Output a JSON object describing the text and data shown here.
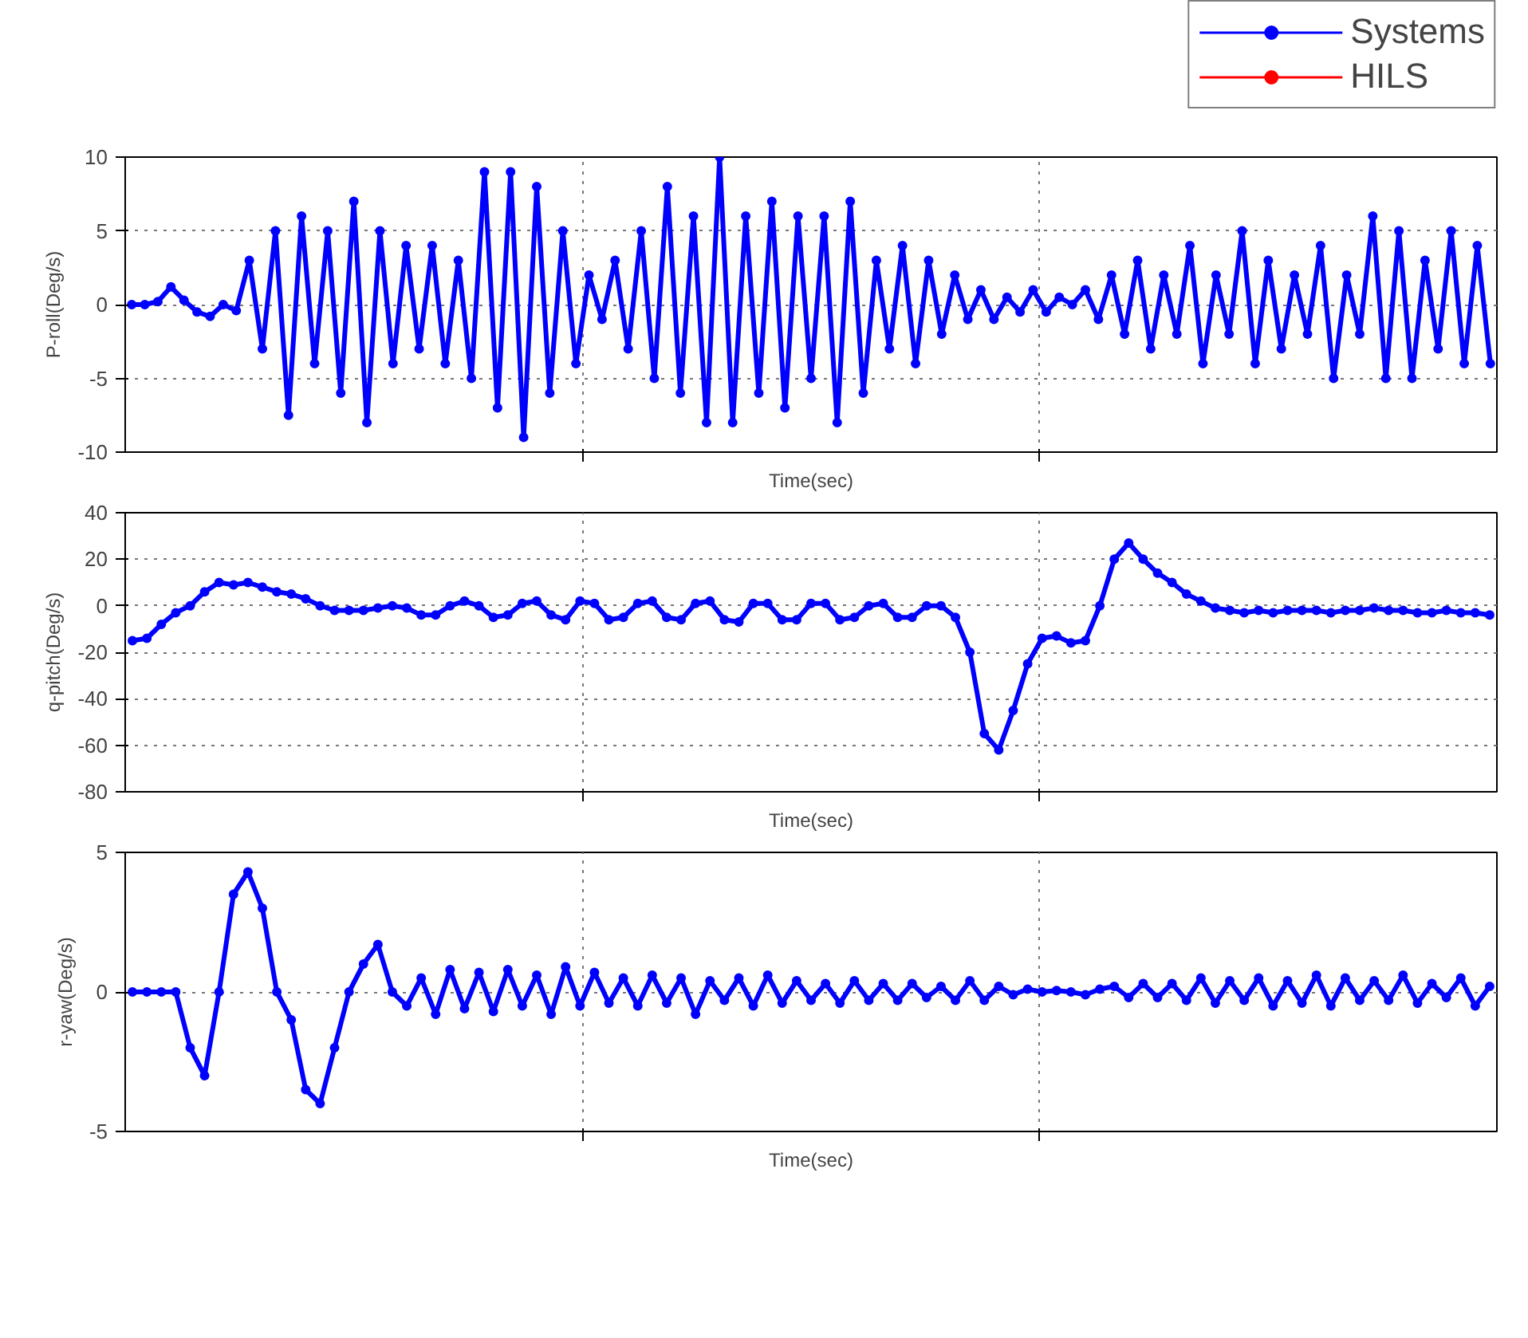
{
  "chart_data": [
    {
      "type": "line",
      "xlabel": "Time(sec)",
      "ylabel": "P-roll(Deg/s)",
      "ylim": [
        -10,
        10
      ],
      "yticks": [
        -10,
        -5,
        0,
        5,
        10
      ],
      "grid": true,
      "legend": "top right",
      "marker": "circle",
      "line_style": "solid",
      "tick_labels": "y",
      "categories": [
        null,
        null,
        null,
        null,
        null,
        null,
        null,
        null,
        null,
        null,
        null,
        null,
        null,
        null,
        null,
        null,
        null,
        null,
        null,
        null,
        null,
        null,
        null,
        null,
        null,
        null,
        null,
        null,
        null,
        null,
        null,
        null,
        null,
        null,
        null,
        null,
        null,
        null,
        null,
        null,
        null,
        null,
        null,
        null,
        null,
        null,
        null,
        null,
        null,
        null,
        null,
        null,
        null,
        null,
        null,
        null,
        null,
        null,
        null,
        null,
        null,
        null,
        null,
        null,
        null,
        null,
        null,
        null,
        null,
        null,
        null,
        null,
        null,
        null,
        null,
        null,
        null,
        null,
        null,
        null,
        null,
        null,
        null,
        null,
        null,
        null,
        null,
        null,
        null,
        null,
        null,
        null,
        null,
        null,
        null,
        null,
        null,
        null,
        null,
        null,
        null,
        null,
        null,
        null,
        null
      ],
      "series": [
        {
          "name": "Systems",
          "color": "#0000ff",
          "values": [
            0,
            0,
            0.2,
            1.2,
            0.3,
            -0.5,
            -0.8,
            0,
            -0.4,
            3,
            -3,
            5,
            -7.5,
            6,
            -4,
            5,
            -6,
            7,
            -8,
            5,
            -4,
            4,
            -3,
            4,
            -4,
            3,
            -5,
            9,
            -7,
            9,
            -9,
            8,
            -6,
            5,
            -4,
            2,
            -1,
            3,
            -3,
            5,
            -5,
            8,
            -6,
            6,
            -8,
            10,
            -8,
            6,
            -6,
            7,
            -7,
            6,
            -5,
            6,
            -8,
            7,
            -6,
            3,
            -3,
            4,
            -4,
            3,
            -2,
            2,
            -1,
            1,
            -1,
            0.5,
            -0.5,
            1,
            -0.5,
            0.5,
            0,
            1,
            -1,
            2,
            -2,
            3,
            -3,
            2,
            -2,
            4,
            -4,
            2,
            -2,
            5,
            -4,
            3,
            -3,
            2,
            -2,
            4,
            -5,
            2,
            -2,
            6,
            -5,
            5,
            -5,
            3,
            -3,
            5,
            -4,
            4,
            -4
          ]
        },
        {
          "name": "HILS",
          "color": "#ff0000",
          "values": [
            null,
            null,
            null,
            null,
            null,
            null,
            null,
            null,
            null,
            null,
            null,
            null,
            null,
            null,
            null,
            null,
            null,
            null,
            null,
            null,
            null,
            null,
            null,
            null,
            null,
            null,
            null,
            null,
            null,
            null,
            null,
            null,
            null,
            null,
            null,
            null,
            null,
            null,
            null,
            null,
            null,
            null,
            null,
            null,
            null,
            null,
            null,
            null,
            null,
            null,
            null,
            null,
            null,
            null,
            null,
            null,
            null,
            null,
            null,
            null,
            null,
            null,
            null,
            null,
            null,
            null,
            null,
            null,
            null,
            null,
            null,
            null,
            null,
            null,
            null,
            null,
            null,
            null,
            null,
            null,
            null,
            null,
            null,
            null,
            null,
            null,
            null,
            null,
            null,
            null,
            null,
            null,
            null,
            null,
            null,
            null,
            null,
            null,
            null,
            null,
            null,
            null,
            null,
            null,
            null
          ]
        }
      ]
    },
    {
      "type": "line",
      "xlabel": "Time(sec)",
      "ylabel": "q-pitch(Deg/s)",
      "ylim": [
        -80,
        40
      ],
      "yticks": [
        -80,
        -60,
        -40,
        -20,
        0,
        20,
        40
      ],
      "grid": true,
      "marker": "circle",
      "line_style": "solid",
      "tick_labels": "y",
      "categories": [
        null,
        null,
        null,
        null,
        null,
        null,
        null,
        null,
        null,
        null,
        null,
        null,
        null,
        null,
        null,
        null,
        null,
        null,
        null,
        null,
        null,
        null,
        null,
        null,
        null,
        null,
        null,
        null,
        null,
        null,
        null,
        null,
        null,
        null,
        null,
        null,
        null,
        null,
        null,
        null,
        null,
        null,
        null,
        null,
        null,
        null,
        null,
        null,
        null,
        null,
        null,
        null,
        null,
        null,
        null,
        null,
        null,
        null,
        null,
        null,
        null,
        null,
        null,
        null,
        null,
        null,
        null,
        null,
        null,
        null,
        null,
        null,
        null,
        null,
        null,
        null,
        null,
        null,
        null,
        null,
        null,
        null,
        null,
        null,
        null,
        null,
        null,
        null,
        null,
        null,
        null,
        null,
        null,
        null,
        null
      ],
      "series": [
        {
          "color": "#0000ff",
          "values": [
            -15,
            -14,
            -8,
            -3,
            0,
            6,
            10,
            9,
            10,
            8,
            6,
            5,
            3,
            0,
            -2,
            -2,
            -2,
            -1,
            0,
            -1,
            -4,
            -4,
            0,
            2,
            0,
            -5,
            -4,
            1,
            2,
            -4,
            -6,
            2,
            1,
            -6,
            -5,
            1,
            2,
            -5,
            -6,
            1,
            2,
            -6,
            -7,
            1,
            1,
            -6,
            -6,
            1,
            1,
            -6,
            -5,
            0,
            1,
            -5,
            -5,
            0,
            0,
            -5,
            -20,
            -55,
            -62,
            -45,
            -25,
            -14,
            -13,
            -16,
            -15,
            0,
            20,
            27,
            20,
            14,
            10,
            5,
            2,
            -1,
            -2,
            -3,
            -2,
            -3,
            -2,
            -2,
            -2,
            -3,
            -2,
            -2,
            -1,
            -2,
            -2,
            -3,
            -3,
            -2,
            -3,
            -3,
            -4
          ]
        }
      ]
    },
    {
      "type": "line",
      "xlabel": "Time(sec)",
      "ylabel": "r-yaw(Deg/s)",
      "ylim": [
        -5,
        5
      ],
      "yticks": [
        -5,
        0,
        5
      ],
      "grid": true,
      "marker": "circle",
      "line_style": "solid",
      "tick_labels": "y",
      "categories": [
        null,
        null,
        null,
        null,
        null,
        null,
        null,
        null,
        null,
        null,
        null,
        null,
        null,
        null,
        null,
        null,
        null,
        null,
        null,
        null,
        null,
        null,
        null,
        null,
        null,
        null,
        null,
        null,
        null,
        null,
        null,
        null,
        null,
        null,
        null,
        null,
        null,
        null,
        null,
        null,
        null,
        null,
        null,
        null,
        null,
        null,
        null,
        null,
        null,
        null,
        null,
        null,
        null,
        null,
        null,
        null,
        null,
        null,
        null,
        null,
        null,
        null,
        null,
        null,
        null,
        null,
        null,
        null,
        null,
        null,
        null,
        null,
        null,
        null,
        null,
        null,
        null,
        null,
        null,
        null,
        null,
        null,
        null,
        null,
        null,
        null,
        null,
        null,
        null,
        null,
        null,
        null,
        null,
        null,
        null
      ],
      "series": [
        {
          "color": "#0000ff",
          "values": [
            0,
            0,
            0,
            0,
            -2,
            -3,
            0,
            3.5,
            4.3,
            3,
            0,
            -1,
            -3.5,
            -4,
            -2,
            0,
            1,
            1.7,
            0,
            -0.5,
            0.5,
            -0.8,
            0.8,
            -0.6,
            0.7,
            -0.7,
            0.8,
            -0.5,
            0.6,
            -0.8,
            0.9,
            -0.5,
            0.7,
            -0.4,
            0.5,
            -0.5,
            0.6,
            -0.4,
            0.5,
            -0.8,
            0.4,
            -0.3,
            0.5,
            -0.5,
            0.6,
            -0.4,
            0.4,
            -0.3,
            0.3,
            -0.4,
            0.4,
            -0.3,
            0.3,
            -0.3,
            0.3,
            -0.2,
            0.2,
            -0.3,
            0.4,
            -0.3,
            0.2,
            -0.1,
            0.1,
            0,
            0.05,
            0,
            -0.1,
            0.1,
            0.2,
            -0.2,
            0.3,
            -0.2,
            0.3,
            -0.3,
            0.5,
            -0.4,
            0.4,
            -0.3,
            0.5,
            -0.5,
            0.4,
            -0.4,
            0.6,
            -0.5,
            0.5,
            -0.3,
            0.4,
            -0.3,
            0.6,
            -0.4,
            0.3,
            -0.2,
            0.5,
            -0.5,
            0.2
          ]
        }
      ]
    }
  ]
}
